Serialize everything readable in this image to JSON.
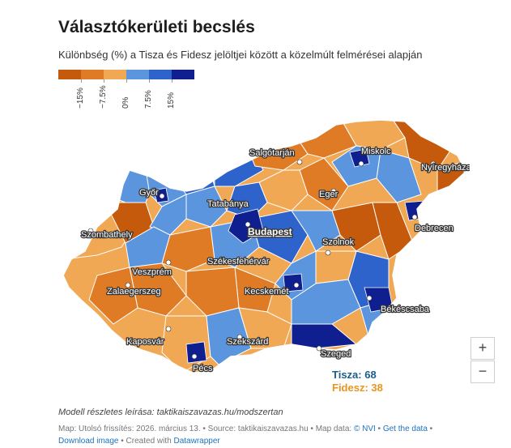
{
  "header": {
    "title": "Választókerületi becslés",
    "subtitle": "Különbség (%) a Tisza és Fidesz jelöltjei között a közelmúlt felmérései alapján"
  },
  "legend": {
    "colors": [
      "#c55a0c",
      "#e07b25",
      "#f0a855",
      "#5a95dd",
      "#2e63cc",
      "#0f1f8f"
    ],
    "ticks": [
      "−15%",
      "−7.5%",
      "0%",
      "7.5%",
      "15%"
    ]
  },
  "map": {
    "colors": {
      "fidesz_strong": "#c55a0c",
      "fidesz_mid": "#e07b25",
      "fidesz_light": "#f0a855",
      "tisza_light": "#5a95dd",
      "tisza_mid": "#2e63cc",
      "tisza_strong": "#0f1f8f",
      "border": "#ffffff"
    },
    "cities": [
      "Salgótarján",
      "Miskolc",
      "Nyíregyháza",
      "Győr",
      "Tatabánya",
      "Eger",
      "Budapest",
      "Debrecen",
      "Szombathely",
      "Szolnok",
      "Veszprém",
      "Székesfehérvár",
      "Zalaegerszeg",
      "Kecskemét",
      "Békéscsaba",
      "Kaposvár",
      "Szekszárd",
      "Szeged",
      "Pécs"
    ],
    "capital": "Budapest"
  },
  "tally": {
    "tisza_label": "Tisza: 68",
    "fidesz_label": "Fidesz: 38",
    "tisza_color": "#1a5e8a",
    "fidesz_color": "#e8951f"
  },
  "zoom": {
    "in": "+",
    "out": "−"
  },
  "footer": {
    "method": "Modell részletes leírása: taktikaiszavazas.hu/modszertan",
    "line_prefix": "Map: Utolsó frissítés: 2026. március 13. • Source: taktikaiszavazas.hu • Map data: ",
    "nvi_link": "© NVI",
    "sep1": " • ",
    "get_data": "Get the data",
    "sep2": " • ",
    "download": "Download image",
    "created": " • Created with ",
    "datawrapper": "Datawrapper"
  }
}
